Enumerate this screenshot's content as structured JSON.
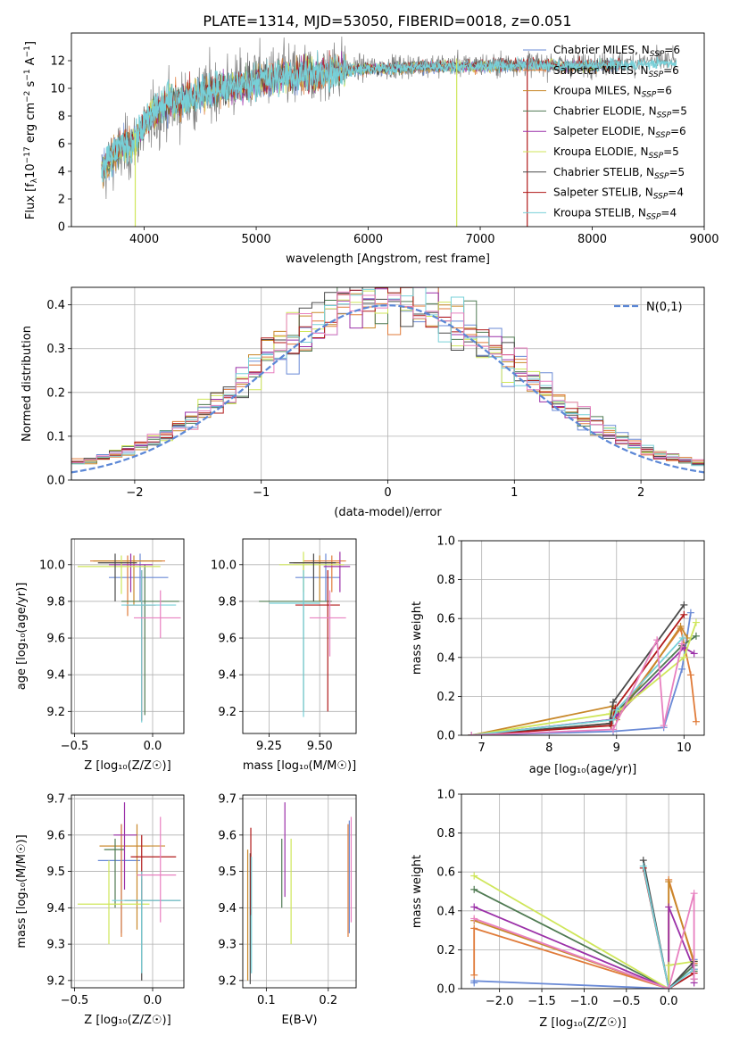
{
  "figure_title": "PLATE=1314, MJD=53050, FIBERID=0018, z=0.051",
  "colors": [
    "#6a8ad6",
    "#e07b39",
    "#c8882a",
    "#4f7a52",
    "#9b30a8",
    "#cfe65a",
    "#4a4a4a",
    "#b01a1a",
    "#77d0d8",
    "#e880c0",
    "#808080",
    "#5aa05a"
  ],
  "spectrum_legend": [
    "Chabrier MILES, N_SSP=6",
    "Salpeter MILES, N_SSP=6",
    "Kroupa MILES, N_SSP=6",
    "Chabrier ELODIE, N_SSP=5",
    "Salpeter ELODIE, N_SSP=6",
    "Kroupa ELODIE, N_SSP=5",
    "Chabrier STELIB, N_SSP=5",
    "Salpeter STELIB, N_SSP=4",
    "Kroupa STELIB, N_SSP=4"
  ],
  "chart_data": [
    {
      "id": "spectrum",
      "type": "line",
      "xlabel": "wavelength [Angstrom, rest frame]",
      "ylabel": "Flux [f_λ 10^-17 erg cm^-2 s^-1 A^-1]",
      "xlim": [
        3350,
        9000
      ],
      "ylim": [
        0,
        14
      ],
      "xticks": [
        4000,
        5000,
        6000,
        7000,
        8000,
        9000
      ],
      "yticks": [
        0,
        2,
        4,
        6,
        8,
        10,
        12
      ],
      "grid": false,
      "legend_placement": "right",
      "data_range": [
        3620,
        8750
      ],
      "envelope": {
        "x": [
          3620,
          3700,
          3800,
          3900,
          4000,
          4100,
          4200,
          4400,
          4600,
          4800,
          5000,
          5200,
          5500,
          5800,
          6000,
          6300,
          6600,
          7000,
          7400,
          7800,
          8200,
          8750
        ],
        "y": [
          4.5,
          5.5,
          6.2,
          6.5,
          7.8,
          8.8,
          9.3,
          9.8,
          10.2,
          10.5,
          11.0,
          11.2,
          11.4,
          11.7,
          11.8,
          11.9,
          12.0,
          12.0,
          12.1,
          12.0,
          12.1,
          12.3
        ]
      },
      "dips": [
        [
          3920,
          0.0,
          "#cfe65a"
        ],
        [
          6790,
          0.0,
          "#cfe65a"
        ],
        [
          7420,
          0.0,
          "#b01a1a"
        ]
      ]
    },
    {
      "id": "residuals",
      "type": "histogram",
      "xlabel": "(data-model)/error",
      "ylabel": "Normed distribution",
      "xlim": [
        -2.5,
        2.5
      ],
      "ylim": [
        0,
        0.44
      ],
      "xticks": [
        -2,
        -1,
        0,
        1,
        2
      ],
      "yticks": [
        0.0,
        0.1,
        0.2,
        0.3,
        0.4
      ],
      "grid": true,
      "legend": "N(0,1)",
      "legend_placement": "top-right",
      "bins": 50
    },
    {
      "id": "age_vs_Z",
      "type": "scatter",
      "xlabel": "Z [log10(Z/Z☉)]",
      "ylabel": "age [log10(age/yr)]",
      "xlim": [
        -0.52,
        0.2
      ],
      "ylim": [
        9.08,
        10.14
      ],
      "xticks": [
        -0.5,
        0.0
      ],
      "yticks": [
        9.2,
        9.4,
        9.6,
        9.8,
        10.0
      ],
      "grid": true,
      "points": [
        {
          "x": -0.08,
          "y": 9.93,
          "xe": [
            -0.28,
            0.1
          ],
          "ye": [
            9.8,
            10.06
          ]
        },
        {
          "x": -0.16,
          "y": 10.02,
          "xe": [
            -0.4,
            0.08
          ],
          "ye": [
            9.72,
            10.05
          ]
        },
        {
          "x": -0.12,
          "y": 10.02,
          "xe": [
            -0.38,
            0.06
          ],
          "ye": [
            9.78,
            10.05
          ]
        },
        {
          "x": -0.05,
          "y": 9.8,
          "xe": [
            -0.2,
            0.17
          ],
          "ye": [
            9.18,
            10.0
          ]
        },
        {
          "x": -0.14,
          "y": 10.0,
          "xe": [
            -0.28,
            0.0
          ],
          "ye": [
            9.85,
            10.06
          ]
        },
        {
          "x": -0.2,
          "y": 9.99,
          "xe": [
            -0.48,
            0.05
          ],
          "ye": [
            9.84,
            10.05
          ]
        },
        {
          "x": -0.24,
          "y": 10.01,
          "xe": [
            -0.35,
            -0.1
          ],
          "ye": [
            9.8,
            10.06
          ]
        },
        {
          "x": -0.07,
          "y": 9.78,
          "xe": [
            -0.17,
            0.02
          ],
          "ye": [
            9.15,
            9.97
          ]
        },
        {
          "x": -0.07,
          "y": 9.78,
          "xe": [
            -0.2,
            0.15
          ],
          "ye": [
            9.14,
            9.97
          ]
        },
        {
          "x": 0.05,
          "y": 9.71,
          "xe": [
            -0.12,
            0.18
          ],
          "ye": [
            9.6,
            9.86
          ]
        }
      ]
    },
    {
      "id": "age_vs_mass",
      "type": "scatter",
      "xlabel": "mass [log10(M/M☉)]",
      "xlim": [
        9.12,
        9.68
      ],
      "ylim": [
        9.08,
        10.14
      ],
      "xticks": [
        9.25,
        9.5
      ],
      "yticks": [
        9.2,
        9.4,
        9.6,
        9.8,
        10.0
      ],
      "grid": true,
      "points": [
        {
          "x": 9.53,
          "y": 9.93,
          "xe": [
            9.38,
            9.6
          ],
          "ye": [
            9.8,
            10.06
          ]
        },
        {
          "x": 9.56,
          "y": 10.02,
          "xe": [
            9.42,
            9.63
          ],
          "ye": [
            9.85,
            10.05
          ]
        },
        {
          "x": 9.5,
          "y": 10.01,
          "xe": [
            9.37,
            9.6
          ],
          "ye": [
            9.8,
            10.05
          ]
        },
        {
          "x": 9.42,
          "y": 9.8,
          "xe": [
            9.2,
            9.56
          ],
          "ye": [
            9.2,
            10.0
          ]
        },
        {
          "x": 9.6,
          "y": 9.99,
          "xe": [
            9.52,
            9.65
          ],
          "ye": [
            9.85,
            10.07
          ]
        },
        {
          "x": 9.42,
          "y": 10.0,
          "xe": [
            9.3,
            9.62
          ],
          "ye": [
            9.85,
            10.07
          ]
        },
        {
          "x": 9.47,
          "y": 10.01,
          "xe": [
            9.35,
            9.58
          ],
          "ye": [
            9.8,
            10.06
          ]
        },
        {
          "x": 9.54,
          "y": 9.78,
          "xe": [
            9.38,
            9.6
          ],
          "ye": [
            9.2,
            9.97
          ]
        },
        {
          "x": 9.42,
          "y": 9.79,
          "xe": [
            9.25,
            9.5
          ],
          "ye": [
            9.17,
            9.97
          ]
        },
        {
          "x": 9.55,
          "y": 9.71,
          "xe": [
            9.45,
            9.63
          ],
          "ye": [
            9.5,
            9.86
          ]
        }
      ]
    },
    {
      "id": "massweight_vs_age",
      "type": "line",
      "xlabel": "age [log10(age/yr)]",
      "ylabel": "mass weight",
      "xlim": [
        6.7,
        10.3
      ],
      "ylim": [
        0,
        1.0
      ],
      "xticks": [
        7,
        8,
        9,
        10
      ],
      "yticks": [
        0.0,
        0.2,
        0.4,
        0.6,
        0.8,
        1.0
      ],
      "grid": true,
      "series": [
        {
          "x": [
            6.85,
            8.95,
            9.7,
            9.97,
            10.1
          ],
          "y": [
            0.0,
            0.02,
            0.04,
            0.34,
            0.63
          ]
        },
        {
          "x": [
            6.85,
            8.9,
            9.0,
            9.95,
            10.1,
            10.18
          ],
          "y": [
            0.0,
            0.06,
            0.1,
            0.55,
            0.31,
            0.07
          ]
        },
        {
          "x": [
            6.85,
            8.95,
            9.0,
            9.95,
            10.05
          ],
          "y": [
            0.0,
            0.15,
            0.08,
            0.56,
            0.5
          ]
        },
        {
          "x": [
            6.85,
            8.92,
            9.0,
            9.97,
            10.18
          ],
          "y": [
            0.0,
            0.08,
            0.12,
            0.46,
            0.51
          ]
        },
        {
          "x": [
            6.85,
            8.9,
            9.0,
            10.0,
            10.15
          ],
          "y": [
            0.0,
            0.08,
            0.1,
            0.45,
            0.42
          ]
        },
        {
          "x": [
            6.85,
            8.9,
            9.05,
            10.0,
            10.18
          ],
          "y": [
            0.0,
            0.11,
            0.13,
            0.4,
            0.58
          ]
        },
        {
          "x": [
            6.85,
            8.9,
            8.95,
            10.0
          ],
          "y": [
            0.0,
            0.06,
            0.17,
            0.67
          ]
        },
        {
          "x": [
            6.85,
            8.92,
            8.98,
            10.0
          ],
          "y": [
            0.0,
            0.05,
            0.14,
            0.62
          ]
        },
        {
          "x": [
            6.85,
            8.95,
            9.0,
            9.98
          ],
          "y": [
            0.0,
            0.08,
            0.13,
            0.5
          ]
        },
        {
          "x": [
            6.85,
            8.95,
            9.6,
            9.7,
            9.97
          ],
          "y": [
            0.0,
            0.03,
            0.49,
            0.05,
            0.47
          ]
        }
      ]
    },
    {
      "id": "mass_vs_Z",
      "type": "scatter",
      "xlabel": "Z [log10(Z/Z☉)]",
      "ylabel": "mass [log10(M/M☉)]",
      "xlim": [
        -0.52,
        0.2
      ],
      "ylim": [
        9.18,
        9.71
      ],
      "xticks": [
        -0.5,
        0.0
      ],
      "yticks": [
        9.2,
        9.3,
        9.4,
        9.5,
        9.6,
        9.7
      ],
      "grid": true,
      "points": [
        {
          "x": -0.2,
          "y": 9.53,
          "xe": [
            -0.35,
            -0.08
          ],
          "ye": [
            9.33,
            9.63
          ]
        },
        {
          "x": -0.2,
          "y": 9.57,
          "xe": [
            -0.34,
            -0.02
          ],
          "ye": [
            9.32,
            9.63
          ]
        },
        {
          "x": -0.1,
          "y": 9.57,
          "xe": [
            -0.34,
            0.08
          ],
          "ye": [
            9.34,
            9.63
          ]
        },
        {
          "x": -0.24,
          "y": 9.56,
          "xe": [
            -0.31,
            -0.18
          ],
          "ye": [
            9.4,
            9.59
          ]
        },
        {
          "x": -0.18,
          "y": 9.6,
          "xe": [
            -0.25,
            -0.1
          ],
          "ye": [
            9.45,
            9.69
          ]
        },
        {
          "x": -0.28,
          "y": 9.41,
          "xe": [
            -0.48,
            -0.02
          ],
          "ye": [
            9.3,
            9.53
          ]
        },
        {
          "x": -0.07,
          "y": 9.42,
          "xe": [
            -0.18,
            0.18
          ],
          "ye": [
            9.2,
            9.48
          ]
        },
        {
          "x": -0.07,
          "y": 9.54,
          "xe": [
            -0.14,
            0.15
          ],
          "ye": [
            9.42,
            9.6
          ]
        },
        {
          "x": -0.07,
          "y": 9.42,
          "xe": [
            -0.26,
            0.18
          ],
          "ye": [
            9.22,
            9.5
          ]
        },
        {
          "x": 0.05,
          "y": 9.49,
          "xe": [
            -0.1,
            0.15
          ],
          "ye": [
            9.36,
            9.65
          ]
        }
      ]
    },
    {
      "id": "mass_vs_EBV",
      "type": "scatter",
      "xlabel": "E(B-V)",
      "xlim": [
        0.062,
        0.245
      ],
      "ylim": [
        9.18,
        9.71
      ],
      "xticks": [
        0.1,
        0.2
      ],
      "yticks": [
        9.2,
        9.3,
        9.4,
        9.5,
        9.6,
        9.7
      ],
      "grid": true,
      "points": [
        {
          "x": 0.234,
          "y": 9.47,
          "ye": [
            9.33,
            9.64
          ]
        },
        {
          "x": 0.232,
          "y": 9.47,
          "ye": [
            9.32,
            9.63
          ]
        },
        {
          "x": 0.07,
          "y": 9.45,
          "ye": [
            9.2,
            9.56
          ]
        },
        {
          "x": 0.125,
          "y": 9.5,
          "ye": [
            9.4,
            9.59
          ]
        },
        {
          "x": 0.13,
          "y": 9.55,
          "ye": [
            9.43,
            9.69
          ]
        },
        {
          "x": 0.14,
          "y": 9.44,
          "ye": [
            9.3,
            9.59
          ]
        },
        {
          "x": 0.074,
          "y": 9.45,
          "ye": [
            9.19,
            9.55
          ]
        },
        {
          "x": 0.075,
          "y": 9.5,
          "ye": [
            9.38,
            9.62
          ]
        },
        {
          "x": 0.076,
          "y": 9.44,
          "ye": [
            9.22,
            9.54
          ]
        },
        {
          "x": 0.237,
          "y": 9.5,
          "ye": [
            9.36,
            9.65
          ]
        }
      ]
    },
    {
      "id": "massweight_vs_Z",
      "type": "line",
      "xlabel": "Z [log10(Z/Z☉)]",
      "ylabel": "mass weight",
      "xlim": [
        -2.45,
        0.42
      ],
      "ylim": [
        0,
        1.0
      ],
      "xticks": [
        -2.0,
        -1.5,
        -1.0,
        -0.5,
        0.0
      ],
      "yticks": [
        0.0,
        0.2,
        0.4,
        0.6,
        0.8,
        1.0
      ],
      "grid": true,
      "series": [
        {
          "x": [
            -2.3,
            -2.3,
            0.0,
            0.3,
            0.3
          ],
          "y": [
            0.03,
            0.04,
            0.0,
            0.1,
            0.15
          ]
        },
        {
          "x": [
            -2.3,
            -2.3,
            0.0,
            0.0,
            0.3
          ],
          "y": [
            0.07,
            0.31,
            0.0,
            0.56,
            0.13
          ]
        },
        {
          "x": [
            -2.3,
            0.0,
            0.0,
            0.3
          ],
          "y": [
            0.35,
            0.0,
            0.55,
            0.14
          ]
        },
        {
          "x": [
            -2.3,
            0.0,
            0.3,
            0.3
          ],
          "y": [
            0.51,
            0.0,
            0.12,
            0.09
          ]
        },
        {
          "x": [
            -2.3,
            0.0,
            0.0,
            0.3,
            0.3
          ],
          "y": [
            0.42,
            0.0,
            0.42,
            0.1,
            0.03
          ]
        },
        {
          "x": [
            -2.3,
            0.0,
            0.0,
            0.3
          ],
          "y": [
            0.58,
            0.0,
            0.12,
            0.14
          ]
        },
        {
          "x": [
            -0.3,
            0.0,
            0.3,
            0.3
          ],
          "y": [
            0.66,
            0.0,
            0.14,
            0.05
          ]
        },
        {
          "x": [
            -0.3,
            0.0,
            0.3
          ],
          "y": [
            0.62,
            0.0,
            0.08
          ]
        },
        {
          "x": [
            -0.3,
            0.0,
            0.3
          ],
          "y": [
            0.63,
            0.0,
            0.1
          ]
        },
        {
          "x": [
            -2.3,
            0.0,
            0.3,
            0.3
          ],
          "y": [
            0.36,
            0.0,
            0.49,
            0.05
          ]
        }
      ]
    }
  ]
}
